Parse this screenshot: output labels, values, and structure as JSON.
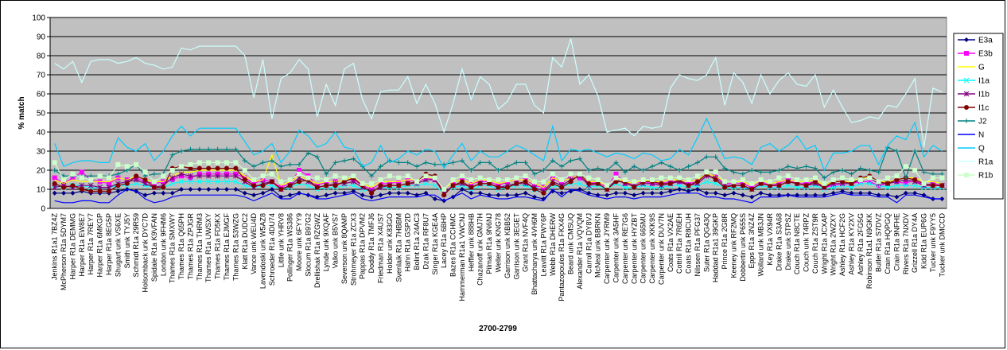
{
  "chart_data": {
    "type": "line",
    "ylabel": "% match",
    "xlabel": "2700-2799",
    "ylim": [
      0,
      100
    ],
    "yticks": [
      0,
      10,
      20,
      30,
      40,
      50,
      60,
      70,
      80,
      90,
      100
    ],
    "grid": true,
    "legend": "right",
    "categories": [
      "Jenkins R1a1 7BZ4Z",
      "McPherson R1a 5DYM7",
      "Harper R1a DEMMG",
      "Harper R1a EW8E7",
      "Harper R1a 7REY7",
      "Harper R1a 6MKGP",
      "Harper R1a 8EG5P",
      "Shugart unk VS6XE",
      "Smith unk TYJ5Y",
      "Schmidt R1a 29R59",
      "Holsomback unk DYC7D",
      "Spidale R1a K9VFAN",
      "London unk 9FHM6",
      "Thames R1a SMXWY",
      "Thames R1a Q65PH",
      "Thames R1a ZPJGR",
      "Thames R1a THRM3",
      "Thames R1a UWSXY",
      "Thames R1a FD5KX",
      "Thames R1a EJMGF",
      "Thames R1a 53WZG",
      "Klatt R1a DUDC2",
      "Vance unk WEU4D",
      "Lavendoski unk W5AZ8",
      "Schroeder R1a 4DU74",
      "Little unk YHRV8",
      "Pollinger R1a WS386",
      "Moore unk 6FYY9",
      "Slocum R1a B97G2",
      "Drellishak R1a RZGWZ",
      "Lynde unk 9XQAF",
      "Valko unk B5VS7",
      "Severson unk 8QAMP",
      "Strohmeyer R1a ZCX3",
      "Pappas R1a DPVM2",
      "Doddy R1a TMFJ6",
      "Friedman R1a X4US7",
      "Holder unk K83GO",
      "Svenlaik R1a 7HBBM",
      "Hahn R1a GSP2D",
      "Bolint R1a 24AC3",
      "Dzak R1a RF8U7",
      "Singer R1a KGE4A",
      "Lacey R1a 6BHP",
      "Bazes R1a CCHMC",
      "Hammerman R1a1 VWCNJ",
      "Heffler unk 888HB",
      "Chazanoff unk GMJ7H",
      "Pilman R1a 9N6NJ",
      "Weller unk KNG78",
      "Garrison unk KBB52",
      "Garrison unk 3EGET",
      "Grant R1a NVF4Q",
      "Bhattacharya unk 4VH6M",
      "Leavitt R1a PWY6P",
      "Webb R1a DHERW",
      "Pantazopoulos R1a FKX4G",
      "Beard unk CMSUQ",
      "Alexander R1a VQVQM",
      "Carroll R1a DY8VJ",
      "McNeal unk BBRKN",
      "Carpenter unk JYRM9",
      "Carpenter unk 3A5HF",
      "Carpenter unk RE7G6",
      "Carpenter unk HYZBT",
      "Carpenter unk 665MU",
      "Carpenter unk XKK9S",
      "Carpenter unk DUV7N",
      "Coats R1a VX2AE",
      "Cottrill R1a 7R6EH",
      "Coats R1a R8CUH",
      "Nilssen R1a PFG37",
      "Suter R1a QG43Q",
      "Haddad R1a1 39GKP",
      "Prince R1a 2G8R",
      "Keeney unk RF2MQ",
      "Dobbertin unk P655S",
      "Epps R1a 3NZ4Z",
      "Wollard unk MB3JN",
      "Key R1a VX94R",
      "Drake R1a S3A68",
      "Drake unk 5TPSZ",
      "Couch R1a N8CTE",
      "Couch unk T4RPZ",
      "Couch R1a ZST9R",
      "Wright R1a JCXAP",
      "Wright R1a 2WZXY",
      "Ashley R1a HCF2G",
      "Ashley R1a KY2XV",
      "Ashley R1a 2FG5G",
      "Robinson R1a1 N9GKK",
      "Butler R1a S7DVZ",
      "Crain R1a HQPGQ",
      "Crain R1a 9NFHE",
      "Rivers R1a 7NXDV",
      "Grizzell R1a DY4A",
      "Kidd R1a EUP6G",
      "Tucker unk F9YY5",
      "Tucker unk DMCCD"
    ],
    "series": [
      {
        "name": "E3a",
        "color": "#000080",
        "marker": "diamond",
        "values": [
          8,
          8,
          8,
          9,
          8,
          8,
          8,
          9,
          10,
          9,
          7,
          8,
          8,
          8,
          10,
          10,
          10,
          10,
          10,
          10,
          10,
          8,
          7,
          8,
          10,
          6,
          7,
          8,
          7,
          6,
          7,
          8,
          8,
          9,
          7,
          6,
          7,
          8,
          8,
          8,
          7,
          8,
          5,
          4,
          6,
          10,
          8,
          8,
          7,
          7,
          7,
          7,
          8,
          6,
          5,
          9,
          8,
          9,
          10,
          8,
          7,
          7,
          8,
          8,
          7,
          8,
          8,
          8,
          9,
          10,
          9,
          10,
          8,
          8,
          7,
          8,
          7,
          6,
          8,
          7,
          7,
          7,
          7,
          7,
          7,
          7,
          8,
          9,
          8,
          8,
          8,
          7,
          7,
          6,
          8,
          8,
          7,
          5,
          5
        ]
      },
      {
        "name": "E3b",
        "color": "#ff00ff",
        "marker": "square",
        "values": [
          16,
          13,
          16,
          19,
          15,
          14,
          13,
          16,
          15,
          16,
          14,
          13,
          14,
          15,
          17,
          16,
          18,
          18,
          18,
          18,
          18,
          16,
          13,
          15,
          14,
          11,
          13,
          20,
          17,
          12,
          14,
          14,
          15,
          15,
          12,
          10,
          13,
          13,
          14,
          15,
          14,
          16,
          15,
          10,
          14,
          15,
          13,
          14,
          14,
          12,
          14,
          15,
          15,
          12,
          11,
          16,
          13,
          17,
          16,
          13,
          14,
          11,
          18,
          13,
          13,
          14,
          13,
          13,
          14,
          14,
          13,
          14,
          18,
          17,
          13,
          13,
          13,
          11,
          14,
          12,
          13,
          15,
          13,
          13,
          14,
          11,
          12,
          13,
          13,
          14,
          14,
          12,
          13,
          14,
          13,
          15,
          12,
          13,
          12
        ]
      },
      {
        "name": "G",
        "color": "#ffff00",
        "marker": "none",
        "values": [
          15,
          13,
          15,
          14,
          14,
          14,
          14,
          16,
          15,
          17,
          15,
          14,
          14,
          17,
          19,
          19,
          20,
          20,
          20,
          20,
          20,
          17,
          14,
          15,
          28,
          12,
          14,
          17,
          15,
          13,
          14,
          14,
          15,
          16,
          13,
          11,
          14,
          14,
          14,
          15,
          15,
          16,
          16,
          10,
          14,
          15,
          13,
          15,
          15,
          13,
          14,
          15,
          15,
          13,
          11,
          16,
          14,
          16,
          17,
          14,
          14,
          12,
          16,
          14,
          13,
          15,
          14,
          14,
          15,
          15,
          14,
          15,
          18,
          17,
          14,
          14,
          14,
          12,
          15,
          13,
          14,
          15,
          14,
          14,
          15,
          12,
          14,
          14,
          14,
          16,
          16,
          14,
          14,
          15,
          16,
          16,
          14,
          14,
          13
        ]
      },
      {
        "name": "I1a",
        "color": "#00ffff",
        "marker": "x",
        "values": [
          12,
          11,
          12,
          12,
          11,
          11,
          11,
          12,
          12,
          13,
          12,
          11,
          11,
          13,
          14,
          14,
          14,
          14,
          14,
          14,
          14,
          12,
          11,
          12,
          12,
          10,
          11,
          13,
          12,
          10,
          11,
          11,
          12,
          12,
          10,
          9,
          11,
          11,
          11,
          12,
          12,
          13,
          12,
          8,
          11,
          12,
          10,
          12,
          12,
          10,
          11,
          12,
          12,
          10,
          8,
          12,
          11,
          13,
          13,
          11,
          12,
          10,
          13,
          11,
          11,
          12,
          11,
          11,
          12,
          12,
          11,
          12,
          14,
          13,
          11,
          11,
          11,
          10,
          12,
          11,
          11,
          12,
          11,
          11,
          12,
          10,
          11,
          12,
          11,
          13,
          13,
          12,
          11,
          12,
          12,
          12,
          11,
          11,
          11
        ]
      },
      {
        "name": "I1b",
        "color": "#800080",
        "marker": "star",
        "values": [
          11,
          12,
          11,
          12,
          12,
          11,
          11,
          13,
          14,
          15,
          13,
          11,
          12,
          16,
          18,
          17,
          17,
          17,
          17,
          17,
          17,
          14,
          11,
          13,
          14,
          10,
          12,
          16,
          14,
          11,
          12,
          13,
          13,
          14,
          11,
          9,
          11,
          12,
          12,
          13,
          13,
          15,
          15,
          8,
          12,
          13,
          11,
          13,
          13,
          11,
          12,
          13,
          13,
          11,
          9,
          14,
          12,
          15,
          17,
          12,
          13,
          10,
          15,
          13,
          12,
          13,
          13,
          12,
          13,
          14,
          12,
          13,
          17,
          16,
          12,
          12,
          12,
          10,
          13,
          12,
          12,
          14,
          13,
          12,
          13,
          11,
          13,
          13,
          13,
          15,
          16,
          13,
          13,
          14,
          15,
          14,
          12,
          12,
          12
        ]
      },
      {
        "name": "I1c",
        "color": "#800000",
        "marker": "circle",
        "values": [
          13,
          11,
          12,
          10,
          9,
          9,
          9,
          12,
          13,
          17,
          15,
          11,
          11,
          21,
          22,
          21,
          21,
          21,
          21,
          21,
          21,
          15,
          12,
          12,
          14,
          10,
          12,
          14,
          15,
          11,
          12,
          12,
          14,
          16,
          12,
          8,
          12,
          12,
          12,
          13,
          14,
          18,
          17,
          7,
          12,
          14,
          11,
          13,
          13,
          11,
          11,
          13,
          14,
          10,
          8,
          13,
          11,
          14,
          18,
          13,
          13,
          10,
          14,
          14,
          11,
          14,
          14,
          13,
          13,
          15,
          12,
          14,
          18,
          15,
          11,
          12,
          12,
          10,
          13,
          12,
          12,
          14,
          13,
          12,
          14,
          11,
          14,
          14,
          13,
          16,
          17,
          14,
          13,
          15,
          16,
          15,
          13,
          12,
          12
        ]
      },
      {
        "name": "J2",
        "color": "#008080",
        "marker": "plus",
        "values": [
          20,
          17,
          17,
          17,
          17,
          17,
          17,
          18,
          20,
          23,
          17,
          18,
          18,
          28,
          30,
          31,
          31,
          31,
          31,
          31,
          31,
          25,
          22,
          24,
          25,
          22,
          23,
          23,
          29,
          27,
          18,
          24,
          25,
          26,
          22,
          17,
          22,
          25,
          24,
          24,
          22,
          24,
          23,
          23,
          24,
          25,
          20,
          24,
          24,
          20,
          22,
          24,
          24,
          18,
          20,
          25,
          22,
          25,
          26,
          20,
          21,
          20,
          24,
          19,
          22,
          20,
          22,
          24,
          22,
          20,
          22,
          24,
          27,
          27,
          21,
          19,
          18,
          20,
          19,
          19,
          20,
          22,
          21,
          22,
          21,
          16,
          19,
          20,
          18,
          21,
          20,
          19,
          32,
          30,
          16,
          30,
          19,
          18,
          18
        ]
      },
      {
        "name": "N",
        "color": "#0000ff",
        "marker": "none",
        "values": [
          4,
          3,
          3,
          4,
          4,
          3,
          3,
          7,
          10,
          9,
          5,
          3,
          4,
          6,
          7,
          7,
          7,
          7,
          7,
          7,
          7,
          6,
          4,
          6,
          8,
          5,
          5,
          8,
          7,
          5,
          5,
          6,
          7,
          8,
          5,
          4,
          5,
          6,
          6,
          6,
          6,
          7,
          7,
          4,
          6,
          8,
          5,
          7,
          6,
          5,
          5,
          6,
          6,
          5,
          4,
          10,
          6,
          10,
          9,
          7,
          6,
          5,
          6,
          6,
          5,
          6,
          6,
          6,
          7,
          8,
          8,
          8,
          6,
          6,
          5,
          5,
          4,
          3,
          6,
          6,
          6,
          7,
          6,
          6,
          6,
          6,
          7,
          8,
          7,
          7,
          7,
          6,
          6,
          3,
          7,
          7,
          6,
          5,
          5
        ]
      },
      {
        "name": "Q",
        "color": "#00ccff",
        "marker": "none",
        "values": [
          34,
          22,
          24,
          25,
          25,
          24,
          24,
          37,
          32,
          30,
          34,
          25,
          30,
          38,
          43,
          38,
          42,
          42,
          42,
          42,
          42,
          35,
          28,
          30,
          34,
          24,
          30,
          41,
          38,
          32,
          34,
          40,
          32,
          31,
          22,
          24,
          33,
          24,
          26,
          30,
          28,
          31,
          30,
          21,
          28,
          34,
          25,
          30,
          27,
          27,
          30,
          33,
          31,
          28,
          25,
          43,
          25,
          31,
          30,
          31,
          29,
          27,
          29,
          28,
          26,
          29,
          28,
          25,
          26,
          31,
          28,
          37,
          47,
          37,
          26,
          27,
          26,
          23,
          32,
          34,
          30,
          33,
          38,
          31,
          33,
          20,
          29,
          29,
          30,
          33,
          33,
          23,
          33,
          38,
          36,
          45,
          27,
          33,
          30
        ]
      },
      {
        "name": "R1a",
        "color": "#ccffff",
        "marker": "none",
        "values": [
          76,
          73,
          77,
          66,
          77,
          78,
          78,
          76,
          77,
          79,
          76,
          75,
          73,
          74,
          84,
          83,
          85,
          85,
          85,
          85,
          85,
          80,
          58,
          78,
          47,
          68,
          71,
          78,
          73,
          48,
          65,
          54,
          73,
          76,
          57,
          47,
          61,
          62,
          62,
          69,
          55,
          65,
          55,
          40,
          55,
          73,
          57,
          69,
          65,
          52,
          56,
          65,
          65,
          54,
          50,
          79,
          74,
          89,
          65,
          70,
          59,
          40,
          41,
          42,
          38,
          43,
          42,
          43,
          63,
          70,
          68,
          67,
          70,
          79,
          54,
          71,
          66,
          55,
          70,
          60,
          67,
          71,
          65,
          64,
          70,
          53,
          62,
          53,
          45,
          46,
          48,
          47,
          54,
          53,
          60,
          68,
          32,
          63,
          61
        ]
      },
      {
        "name": "R1b",
        "color": "#ccffcc",
        "marker": "square",
        "values": [
          24,
          15,
          18,
          16,
          15,
          17,
          16,
          23,
          22,
          23,
          19,
          14,
          17,
          20,
          22,
          23,
          24,
          24,
          24,
          24,
          24,
          20,
          15,
          17,
          18,
          14,
          15,
          18,
          16,
          16,
          15,
          17,
          16,
          17,
          13,
          13,
          15,
          17,
          16,
          17,
          14,
          17,
          16,
          10,
          15,
          17,
          15,
          16,
          15,
          15,
          15,
          16,
          17,
          14,
          14,
          18,
          15,
          18,
          18,
          16,
          15,
          12,
          16,
          15,
          14,
          15,
          15,
          16,
          16,
          16,
          15,
          17,
          19,
          19,
          14,
          14,
          15,
          13,
          15,
          14,
          16,
          17,
          15,
          15,
          16,
          13,
          15,
          16,
          15,
          15,
          16,
          14,
          16,
          17,
          22,
          20,
          13,
          16,
          16
        ]
      }
    ]
  }
}
